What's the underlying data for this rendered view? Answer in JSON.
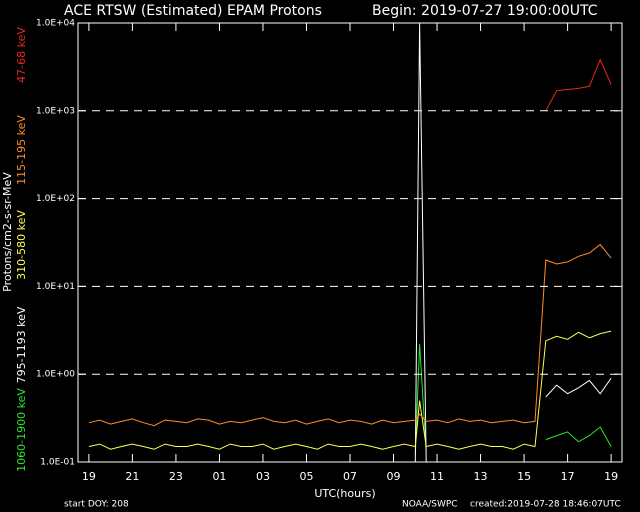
{
  "chart_data": {
    "type": "line",
    "title": "ACE RTSW (Estimated) EPAM Protons",
    "subtitle": "Begin: 2019-07-27 19:00:00UTC",
    "x_label": "UTC(hours)",
    "y_label": "Protons/cm2-s-sr-MeV",
    "footer_left": "start DOY:  208",
    "footer_center": "NOAA/SWPC",
    "footer_right": "created:2019-07-28 18:46:07UTC",
    "log_y": true,
    "grid": true,
    "xlim": [
      -0.5,
      24.5
    ],
    "ylim": [
      0.1,
      10000
    ],
    "xticks": [
      {
        "value": 0,
        "label": "19"
      },
      {
        "value": 2,
        "label": "21"
      },
      {
        "value": 4,
        "label": "23"
      },
      {
        "value": 6,
        "label": "01"
      },
      {
        "value": 8,
        "label": "03"
      },
      {
        "value": 10,
        "label": "05"
      },
      {
        "value": 12,
        "label": "07"
      },
      {
        "value": 14,
        "label": "09"
      },
      {
        "value": 16,
        "label": "11"
      },
      {
        "value": 18,
        "label": "13"
      },
      {
        "value": 20,
        "label": "15"
      },
      {
        "value": 22,
        "label": "17"
      },
      {
        "value": 24,
        "label": "19"
      }
    ],
    "yticks": [
      {
        "value": 0.1,
        "label": "1.0E-01"
      },
      {
        "value": 1,
        "label": "1.0E+00"
      },
      {
        "value": 10,
        "label": "1.0E+01"
      },
      {
        "value": 100,
        "label": "1.0E+02"
      },
      {
        "value": 1000,
        "label": "1.0E+03"
      },
      {
        "value": 10000,
        "label": "1.0E+04"
      }
    ],
    "x": [
      0,
      0.5,
      1,
      1.5,
      2,
      2.5,
      3,
      3.5,
      4,
      4.5,
      5,
      5.5,
      6,
      6.5,
      7,
      7.5,
      8,
      8.5,
      9,
      9.5,
      10,
      10.5,
      11,
      11.5,
      12,
      12.5,
      13,
      13.5,
      14,
      14.5,
      15,
      15.2,
      15.5,
      16,
      16.5,
      17,
      17.5,
      18,
      18.5,
      19,
      19.5,
      20,
      20.5,
      21,
      21.5,
      22,
      22.5,
      23,
      23.5,
      24
    ],
    "series": [
      {
        "name": "1060-1900 keV",
        "color": "#28e828",
        "values": [
          null,
          null,
          null,
          null,
          null,
          null,
          null,
          null,
          null,
          null,
          null,
          null,
          null,
          null,
          null,
          null,
          null,
          null,
          null,
          null,
          null,
          null,
          null,
          null,
          null,
          null,
          null,
          null,
          null,
          null,
          0.12,
          2.2,
          0.13,
          null,
          null,
          null,
          null,
          null,
          null,
          null,
          null,
          null,
          null,
          0.18,
          0.2,
          0.22,
          0.17,
          0.2,
          0.25,
          0.15
        ]
      },
      {
        "name": "795-1193 keV",
        "color": "#ffffff",
        "values": [
          null,
          null,
          null,
          null,
          null,
          null,
          null,
          null,
          null,
          null,
          null,
          null,
          null,
          null,
          null,
          null,
          null,
          null,
          null,
          null,
          null,
          null,
          null,
          null,
          null,
          null,
          null,
          null,
          null,
          null,
          0.1,
          10000,
          0.1,
          null,
          null,
          null,
          null,
          null,
          null,
          null,
          null,
          null,
          null,
          0.55,
          0.75,
          0.6,
          0.7,
          0.85,
          0.6,
          0.9
        ]
      },
      {
        "name": "310-580 keV",
        "color": "#ffff50",
        "values": [
          0.15,
          0.16,
          0.14,
          0.15,
          0.16,
          0.15,
          0.14,
          0.16,
          0.15,
          0.15,
          0.16,
          0.15,
          0.14,
          0.16,
          0.15,
          0.15,
          0.16,
          0.14,
          0.15,
          0.16,
          0.15,
          0.14,
          0.16,
          0.15,
          0.15,
          0.16,
          0.15,
          0.14,
          0.15,
          0.16,
          0.15,
          0.5,
          0.15,
          0.16,
          0.15,
          0.14,
          0.15,
          0.16,
          0.15,
          0.15,
          0.14,
          0.16,
          0.15,
          2.4,
          2.7,
          2.5,
          3,
          2.6,
          2.9,
          3.1
        ]
      },
      {
        "name": "115-195 keV",
        "color": "#ff8c28",
        "values": [
          0.28,
          0.3,
          0.27,
          0.29,
          0.31,
          0.28,
          0.26,
          0.3,
          0.29,
          0.28,
          0.31,
          0.3,
          0.27,
          0.29,
          0.28,
          0.3,
          0.32,
          0.29,
          0.28,
          0.3,
          0.27,
          0.29,
          0.31,
          0.28,
          0.3,
          0.29,
          0.27,
          0.3,
          0.28,
          0.29,
          0.3,
          0.35,
          0.29,
          0.3,
          0.28,
          0.31,
          0.29,
          0.3,
          0.28,
          0.29,
          0.3,
          0.28,
          0.29,
          20,
          18,
          19,
          22,
          24,
          30,
          21
        ]
      },
      {
        "name": "47-68 keV",
        "color": "#e8281e",
        "values": [
          null,
          null,
          null,
          null,
          null,
          null,
          null,
          null,
          null,
          null,
          null,
          null,
          null,
          null,
          null,
          null,
          null,
          null,
          null,
          null,
          null,
          null,
          null,
          null,
          null,
          null,
          null,
          null,
          null,
          null,
          null,
          null,
          null,
          null,
          null,
          null,
          null,
          null,
          null,
          null,
          null,
          null,
          null,
          1000,
          1700,
          1750,
          1800,
          1900,
          3800,
          2000
        ]
      }
    ]
  }
}
